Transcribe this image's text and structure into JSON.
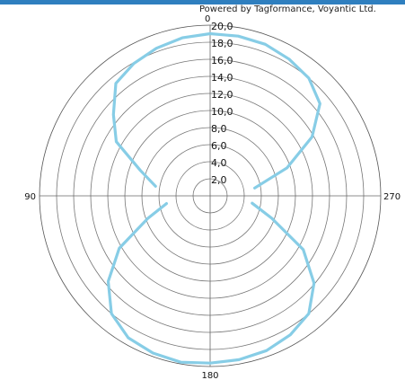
{
  "header": {
    "credit": "Powered by Tagformance, Voyantic Ltd.",
    "bar_color": "#2f7fbf"
  },
  "chart_data": {
    "type": "line",
    "coordinate_system": "polar",
    "angle_labels": [
      "0",
      "90",
      "180",
      "270"
    ],
    "radial_ticks": [
      0,
      2,
      4,
      6,
      8,
      10,
      12,
      14,
      16,
      18,
      20
    ],
    "radial_tick_labels": [
      "2,0",
      "4,0",
      "6,0",
      "8,0",
      "10,0",
      "12,0",
      "14,0",
      "16,0",
      "18,0",
      "20,0"
    ],
    "rlim": [
      0,
      20
    ],
    "grid": true,
    "angle_direction": "counterclockwise",
    "series": [
      {
        "color": "#87cde6",
        "theta": [
          0,
          10,
          20,
          30,
          40,
          50,
          60,
          70,
          80,
          90,
          100,
          110,
          120,
          130,
          140,
          150,
          160,
          170,
          180,
          190,
          200,
          210,
          220,
          230,
          240,
          250,
          260,
          270,
          280,
          290,
          300,
          310,
          320,
          330,
          340,
          350,
          360
        ],
        "r": [
          19.0,
          18.8,
          18.4,
          17.9,
          17.2,
          14.8,
          12.7,
          8.7,
          6.5,
          null,
          5.2,
          7.8,
          12.3,
          15.6,
          18.0,
          19.2,
          19.6,
          19.8,
          19.6,
          19.5,
          19.3,
          18.8,
          18.0,
          15.9,
          12.6,
          7.7,
          5.0,
          null,
          5.3,
          9.6,
          13.8,
          16.8,
          18.0,
          18.5,
          18.9,
          19.0,
          19.0
        ]
      }
    ]
  }
}
